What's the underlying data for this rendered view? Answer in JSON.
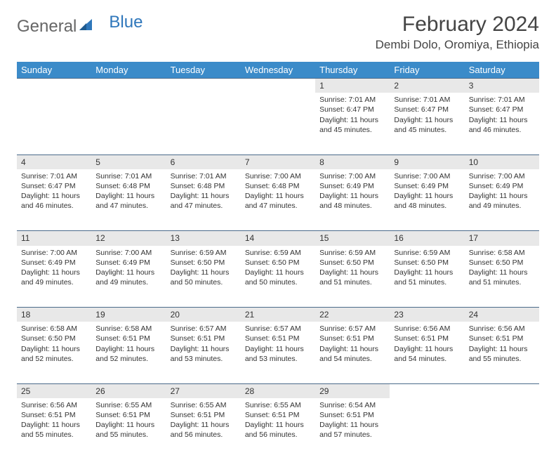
{
  "logo": {
    "part1": "General",
    "part2": "Blue"
  },
  "title": "February 2024",
  "location": "Dembi Dolo, Oromiya, Ethiopia",
  "colors": {
    "header_bg": "#3b8bc9",
    "header_text": "#ffffff",
    "daynum_bg": "#e8e8e8",
    "rule": "#4a6a8a",
    "logo_blue": "#2f77bb"
  },
  "weekdays": [
    "Sunday",
    "Monday",
    "Tuesday",
    "Wednesday",
    "Thursday",
    "Friday",
    "Saturday"
  ],
  "weeks": [
    [
      null,
      null,
      null,
      null,
      {
        "n": "1",
        "sunrise": "Sunrise: 7:01 AM",
        "sunset": "Sunset: 6:47 PM",
        "daylight": "Daylight: 11 hours and 45 minutes."
      },
      {
        "n": "2",
        "sunrise": "Sunrise: 7:01 AM",
        "sunset": "Sunset: 6:47 PM",
        "daylight": "Daylight: 11 hours and 45 minutes."
      },
      {
        "n": "3",
        "sunrise": "Sunrise: 7:01 AM",
        "sunset": "Sunset: 6:47 PM",
        "daylight": "Daylight: 11 hours and 46 minutes."
      }
    ],
    [
      {
        "n": "4",
        "sunrise": "Sunrise: 7:01 AM",
        "sunset": "Sunset: 6:47 PM",
        "daylight": "Daylight: 11 hours and 46 minutes."
      },
      {
        "n": "5",
        "sunrise": "Sunrise: 7:01 AM",
        "sunset": "Sunset: 6:48 PM",
        "daylight": "Daylight: 11 hours and 47 minutes."
      },
      {
        "n": "6",
        "sunrise": "Sunrise: 7:01 AM",
        "sunset": "Sunset: 6:48 PM",
        "daylight": "Daylight: 11 hours and 47 minutes."
      },
      {
        "n": "7",
        "sunrise": "Sunrise: 7:00 AM",
        "sunset": "Sunset: 6:48 PM",
        "daylight": "Daylight: 11 hours and 47 minutes."
      },
      {
        "n": "8",
        "sunrise": "Sunrise: 7:00 AM",
        "sunset": "Sunset: 6:49 PM",
        "daylight": "Daylight: 11 hours and 48 minutes."
      },
      {
        "n": "9",
        "sunrise": "Sunrise: 7:00 AM",
        "sunset": "Sunset: 6:49 PM",
        "daylight": "Daylight: 11 hours and 48 minutes."
      },
      {
        "n": "10",
        "sunrise": "Sunrise: 7:00 AM",
        "sunset": "Sunset: 6:49 PM",
        "daylight": "Daylight: 11 hours and 49 minutes."
      }
    ],
    [
      {
        "n": "11",
        "sunrise": "Sunrise: 7:00 AM",
        "sunset": "Sunset: 6:49 PM",
        "daylight": "Daylight: 11 hours and 49 minutes."
      },
      {
        "n": "12",
        "sunrise": "Sunrise: 7:00 AM",
        "sunset": "Sunset: 6:49 PM",
        "daylight": "Daylight: 11 hours and 49 minutes."
      },
      {
        "n": "13",
        "sunrise": "Sunrise: 6:59 AM",
        "sunset": "Sunset: 6:50 PM",
        "daylight": "Daylight: 11 hours and 50 minutes."
      },
      {
        "n": "14",
        "sunrise": "Sunrise: 6:59 AM",
        "sunset": "Sunset: 6:50 PM",
        "daylight": "Daylight: 11 hours and 50 minutes."
      },
      {
        "n": "15",
        "sunrise": "Sunrise: 6:59 AM",
        "sunset": "Sunset: 6:50 PM",
        "daylight": "Daylight: 11 hours and 51 minutes."
      },
      {
        "n": "16",
        "sunrise": "Sunrise: 6:59 AM",
        "sunset": "Sunset: 6:50 PM",
        "daylight": "Daylight: 11 hours and 51 minutes."
      },
      {
        "n": "17",
        "sunrise": "Sunrise: 6:58 AM",
        "sunset": "Sunset: 6:50 PM",
        "daylight": "Daylight: 11 hours and 51 minutes."
      }
    ],
    [
      {
        "n": "18",
        "sunrise": "Sunrise: 6:58 AM",
        "sunset": "Sunset: 6:50 PM",
        "daylight": "Daylight: 11 hours and 52 minutes."
      },
      {
        "n": "19",
        "sunrise": "Sunrise: 6:58 AM",
        "sunset": "Sunset: 6:51 PM",
        "daylight": "Daylight: 11 hours and 52 minutes."
      },
      {
        "n": "20",
        "sunrise": "Sunrise: 6:57 AM",
        "sunset": "Sunset: 6:51 PM",
        "daylight": "Daylight: 11 hours and 53 minutes."
      },
      {
        "n": "21",
        "sunrise": "Sunrise: 6:57 AM",
        "sunset": "Sunset: 6:51 PM",
        "daylight": "Daylight: 11 hours and 53 minutes."
      },
      {
        "n": "22",
        "sunrise": "Sunrise: 6:57 AM",
        "sunset": "Sunset: 6:51 PM",
        "daylight": "Daylight: 11 hours and 54 minutes."
      },
      {
        "n": "23",
        "sunrise": "Sunrise: 6:56 AM",
        "sunset": "Sunset: 6:51 PM",
        "daylight": "Daylight: 11 hours and 54 minutes."
      },
      {
        "n": "24",
        "sunrise": "Sunrise: 6:56 AM",
        "sunset": "Sunset: 6:51 PM",
        "daylight": "Daylight: 11 hours and 55 minutes."
      }
    ],
    [
      {
        "n": "25",
        "sunrise": "Sunrise: 6:56 AM",
        "sunset": "Sunset: 6:51 PM",
        "daylight": "Daylight: 11 hours and 55 minutes."
      },
      {
        "n": "26",
        "sunrise": "Sunrise: 6:55 AM",
        "sunset": "Sunset: 6:51 PM",
        "daylight": "Daylight: 11 hours and 55 minutes."
      },
      {
        "n": "27",
        "sunrise": "Sunrise: 6:55 AM",
        "sunset": "Sunset: 6:51 PM",
        "daylight": "Daylight: 11 hours and 56 minutes."
      },
      {
        "n": "28",
        "sunrise": "Sunrise: 6:55 AM",
        "sunset": "Sunset: 6:51 PM",
        "daylight": "Daylight: 11 hours and 56 minutes."
      },
      {
        "n": "29",
        "sunrise": "Sunrise: 6:54 AM",
        "sunset": "Sunset: 6:51 PM",
        "daylight": "Daylight: 11 hours and 57 minutes."
      },
      null,
      null
    ]
  ]
}
